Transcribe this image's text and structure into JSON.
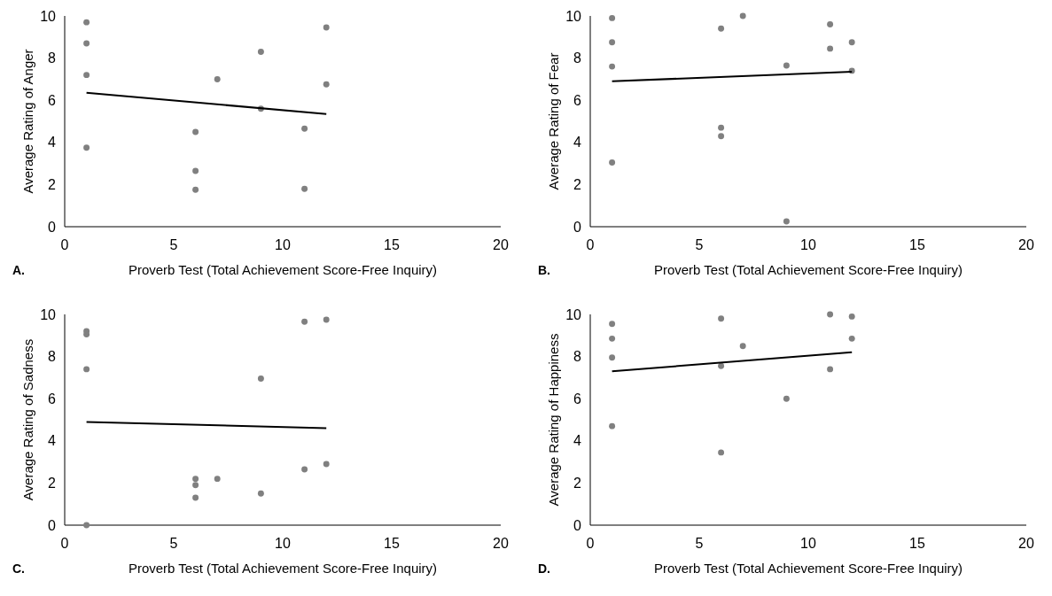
{
  "chart_data": [
    {
      "type": "scatter",
      "xlabel": "Proverb Test (Total Achievement Score-Free Inquiry)",
      "ylabel": "Average Rating of Anger",
      "annotations": [
        "A."
      ],
      "xlim": [
        0,
        20
      ],
      "ylim": [
        0,
        10
      ],
      "xticks": [
        0,
        5,
        10,
        15,
        20
      ],
      "yticks": [
        0,
        2,
        4,
        6,
        8,
        10
      ],
      "grid": false,
      "series": [
        {
          "marker": "circle",
          "color": "#808080",
          "x": [
            1,
            1,
            1,
            1,
            6,
            6,
            6,
            7,
            9,
            9,
            11,
            11,
            12,
            12
          ],
          "values": [
            9.7,
            8.7,
            7.2,
            3.75,
            4.5,
            2.65,
            1.75,
            7.0,
            8.3,
            5.6,
            4.65,
            1.8,
            9.45,
            6.75
          ]
        },
        {
          "type": "line",
          "marker": "none",
          "color": "#000000",
          "x": [
            1,
            12
          ],
          "values": [
            6.35,
            5.35
          ]
        }
      ]
    },
    {
      "type": "scatter",
      "xlabel": "Proverb Test (Total Achievement Score-Free Inquiry)",
      "ylabel": "Average Rating of Fear",
      "annotations": [
        "B."
      ],
      "xlim": [
        0,
        20
      ],
      "ylim": [
        0,
        10
      ],
      "xticks": [
        0,
        5,
        10,
        15,
        20
      ],
      "yticks": [
        0,
        2,
        4,
        6,
        8,
        10
      ],
      "grid": false,
      "series": [
        {
          "marker": "circle",
          "color": "#808080",
          "x": [
            1,
            1,
            1,
            1,
            6,
            6,
            6,
            7,
            9,
            9,
            11,
            11,
            12,
            12
          ],
          "values": [
            9.9,
            8.75,
            7.6,
            3.05,
            9.4,
            4.7,
            4.3,
            10.0,
            7.65,
            0.25,
            9.6,
            8.45,
            8.75,
            7.4
          ]
        },
        {
          "type": "line",
          "marker": "none",
          "color": "#000000",
          "x": [
            1,
            12
          ],
          "values": [
            6.9,
            7.35
          ]
        }
      ]
    },
    {
      "type": "scatter",
      "xlabel": "Proverb Test (Total Achievement Score-Free Inquiry)",
      "ylabel": "Average Rating of Sadness",
      "annotations": [
        "C."
      ],
      "xlim": [
        0,
        20
      ],
      "ylim": [
        0,
        10
      ],
      "xticks": [
        0,
        5,
        10,
        15,
        20
      ],
      "yticks": [
        0,
        2,
        4,
        6,
        8,
        10
      ],
      "grid": false,
      "series": [
        {
          "marker": "circle",
          "color": "#808080",
          "x": [
            1,
            1,
            1,
            1,
            6,
            6,
            6,
            7,
            9,
            9,
            11,
            11,
            12,
            12
          ],
          "values": [
            9.2,
            9.05,
            7.4,
            0,
            2.2,
            1.9,
            1.3,
            2.2,
            6.95,
            1.5,
            9.65,
            2.65,
            9.75,
            2.9
          ]
        },
        {
          "type": "line",
          "marker": "none",
          "color": "#000000",
          "x": [
            1,
            12
          ],
          "values": [
            4.9,
            4.6
          ]
        }
      ]
    },
    {
      "type": "scatter",
      "xlabel": "Proverb Test (Total Achievement Score-Free Inquiry)",
      "ylabel": "Average Rating of Happiness",
      "annotations": [
        "D."
      ],
      "xlim": [
        0,
        20
      ],
      "ylim": [
        0,
        10
      ],
      "xticks": [
        0,
        5,
        10,
        15,
        20
      ],
      "yticks": [
        0,
        2,
        4,
        6,
        8,
        10
      ],
      "grid": false,
      "series": [
        {
          "marker": "circle",
          "color": "#808080",
          "x": [
            1,
            1,
            1,
            1,
            6,
            6,
            6,
            7,
            9,
            11,
            11,
            12,
            12
          ],
          "values": [
            9.55,
            8.85,
            7.95,
            4.7,
            9.8,
            7.55,
            3.45,
            8.5,
            6.0,
            10.0,
            7.4,
            9.9,
            8.85
          ]
        },
        {
          "type": "line",
          "marker": "none",
          "color": "#000000",
          "x": [
            1,
            12
          ],
          "values": [
            7.3,
            8.2
          ]
        }
      ]
    }
  ]
}
